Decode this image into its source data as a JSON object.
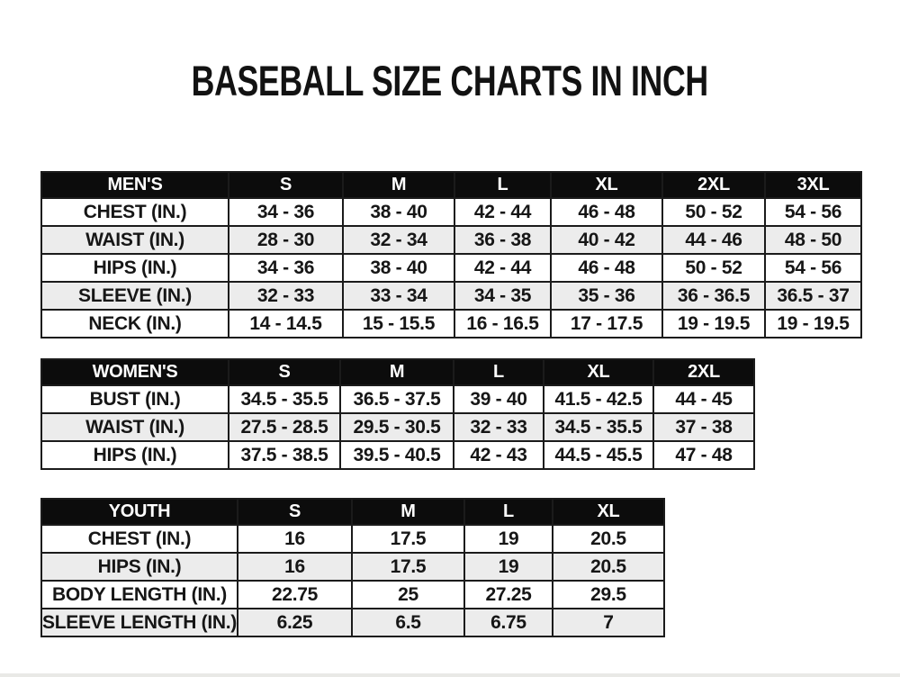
{
  "page": {
    "title": "BASEBALL SIZE CHARTS IN INCH"
  },
  "colors": {
    "background": "#ffffff",
    "header_bg": "#0c0c0c",
    "header_text": "#ffffff",
    "row_alt_bg": "#ececec",
    "border": "#1b1b1b",
    "text": "#161616"
  },
  "chart_data": [
    {
      "type": "table",
      "name": "mens-size-chart",
      "header": [
        "MEN'S",
        "S",
        "M",
        "L",
        "XL",
        "2XL",
        "3XL"
      ],
      "rows": [
        [
          "CHEST (IN.)",
          "34 - 36",
          "38 - 40",
          "42 - 44",
          "46 - 48",
          "50 - 52",
          "54 - 56"
        ],
        [
          "WAIST (IN.)",
          "28 - 30",
          "32 - 34",
          "36 - 38",
          "40 - 42",
          "44 - 46",
          "48 - 50"
        ],
        [
          "HIPS (IN.)",
          "34 - 36",
          "38 - 40",
          "42 - 44",
          "46 - 48",
          "50 - 52",
          "54 - 56"
        ],
        [
          "SLEEVE (IN.)",
          "32 - 33",
          "33 - 34",
          "34 - 35",
          "35 - 36",
          "36 - 36.5",
          "36.5 - 37"
        ],
        [
          "NECK (IN.)",
          "14 - 14.5",
          "15 - 15.5",
          "16 - 16.5",
          "17 - 17.5",
          "19 - 19.5",
          "19 - 19.5"
        ]
      ]
    },
    {
      "type": "table",
      "name": "womens-size-chart",
      "header": [
        "WOMEN'S",
        "S",
        "M",
        "L",
        "XL",
        "2XL"
      ],
      "rows": [
        [
          "BUST (IN.)",
          "34.5 - 35.5",
          "36.5 - 37.5",
          "39 - 40",
          "41.5 - 42.5",
          "44 - 45"
        ],
        [
          "WAIST (IN.)",
          "27.5 - 28.5",
          "29.5 - 30.5",
          "32 - 33",
          "34.5 - 35.5",
          "37 - 38"
        ],
        [
          "HIPS (IN.)",
          "37.5 - 38.5",
          "39.5 - 40.5",
          "42 - 43",
          "44.5 - 45.5",
          "47 - 48"
        ]
      ]
    },
    {
      "type": "table",
      "name": "youth-size-chart",
      "header": [
        "YOUTH",
        "S",
        "M",
        "L",
        "XL"
      ],
      "rows": [
        [
          "CHEST (IN.)",
          "16",
          "17.5",
          "19",
          "20.5"
        ],
        [
          "HIPS (IN.)",
          "16",
          "17.5",
          "19",
          "20.5"
        ],
        [
          "BODY LENGTH (IN.)",
          "22.75",
          "25",
          "27.25",
          "29.5"
        ],
        [
          "SLEEVE LENGTH (IN.)",
          "6.25",
          "6.5",
          "6.75",
          "7"
        ]
      ]
    }
  ]
}
